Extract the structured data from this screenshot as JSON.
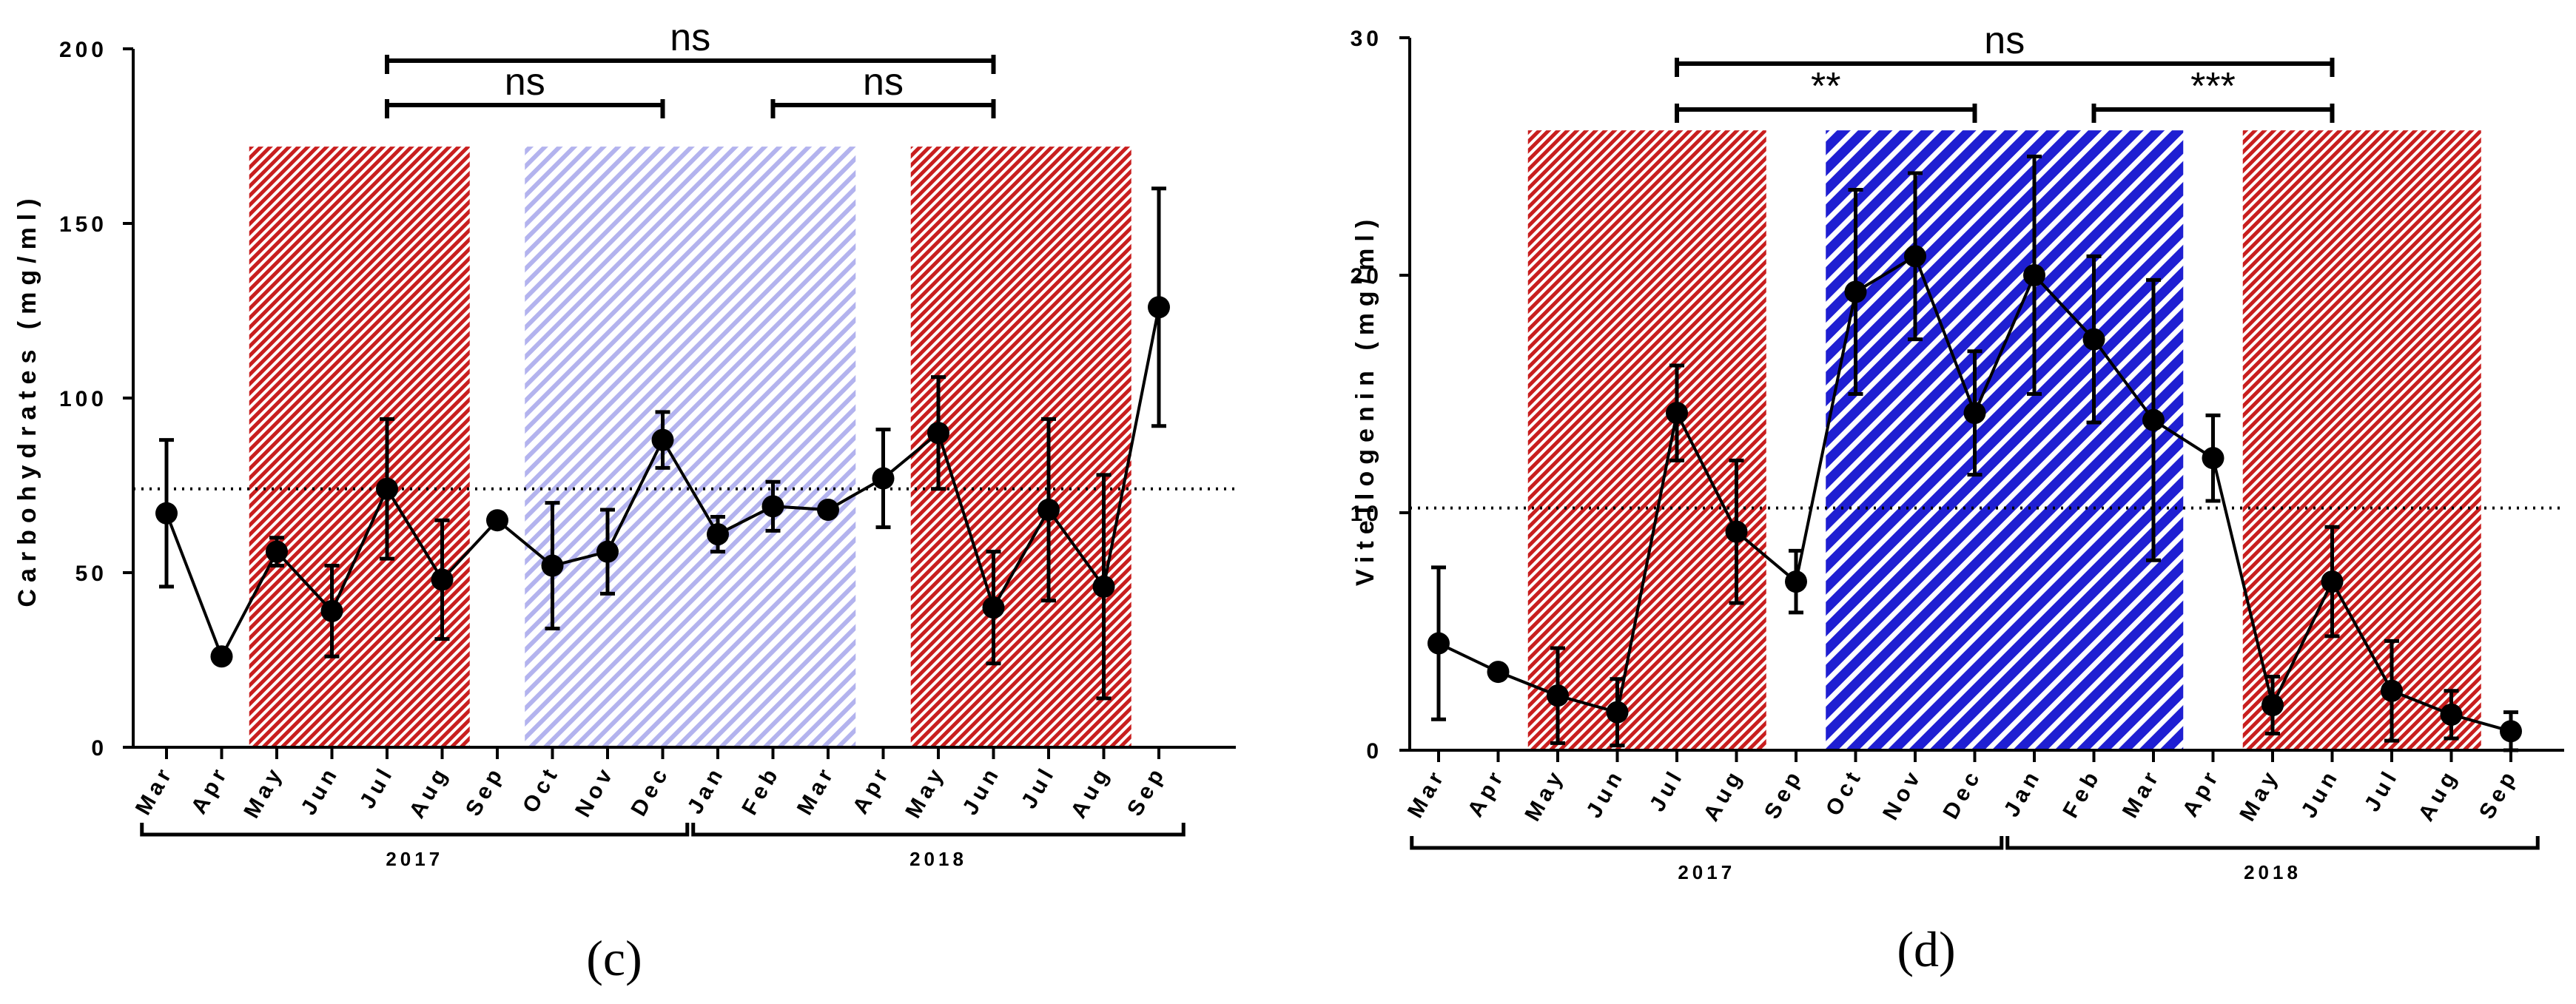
{
  "chart_data": [
    {
      "type": "line",
      "panel_label": "(c)",
      "ylabel": "Carbohydrates  (mg/ml)",
      "xlabel": "",
      "ylim": [
        0,
        200
      ],
      "yticks": [
        0,
        50,
        100,
        150,
        200
      ],
      "ytick_labels": [
        "0",
        "50",
        "100",
        "150",
        "200"
      ],
      "categories": [
        "Mar",
        "Apr",
        "May",
        "Jun",
        "Jul",
        "Aug",
        "Sep",
        "Oct",
        "Nov",
        "Dec",
        "Jan",
        "Feb",
        "Mar",
        "Apr",
        "May",
        "Jun",
        "Jul",
        "Aug",
        "Sep"
      ],
      "values": [
        67,
        26,
        56,
        39,
        74,
        48,
        65,
        52,
        56,
        88,
        61,
        69,
        68,
        77,
        90,
        40,
        68,
        46,
        126
      ],
      "error": [
        21,
        0,
        4,
        13,
        20,
        17,
        0,
        18,
        12,
        8,
        5,
        7,
        0,
        14,
        16,
        16,
        26,
        32,
        34
      ],
      "reference_line": 74,
      "shaded_periods": [
        {
          "from": 2,
          "to": 5,
          "color": "#c81e1e",
          "style": "dense"
        },
        {
          "from": 7,
          "to": 12,
          "color": "#a8a8f0",
          "style": "light"
        },
        {
          "from": 14,
          "to": 17,
          "color": "#c81e1e",
          "style": "dense"
        }
      ],
      "significance": [
        {
          "from": 4,
          "to": 15,
          "level": 2,
          "label": "ns"
        },
        {
          "from": 4,
          "to": 9,
          "level": 1,
          "label": "ns"
        },
        {
          "from": 11,
          "to": 15,
          "level": 1,
          "label": "ns"
        }
      ],
      "years": [
        {
          "label": "2017",
          "from": 0,
          "to": 9
        },
        {
          "label": "2018",
          "from": 10,
          "to": 18
        }
      ],
      "reference_label": "",
      "title": ""
    },
    {
      "type": "line",
      "panel_label": "(d)",
      "ylabel": "Vitellogenin  (mg/ml)",
      "xlabel": "",
      "ylim": [
        0,
        30
      ],
      "yticks": [
        0,
        10,
        20,
        30
      ],
      "ytick_labels": [
        "0",
        "10",
        "20",
        "30"
      ],
      "categories": [
        "Mar",
        "Apr",
        "May",
        "Jun",
        "Jul",
        "Aug",
        "Sep",
        "Oct",
        "Nov",
        "Dec",
        "Jan",
        "Feb",
        "Mar",
        "Apr",
        "May",
        "Jun",
        "Jul",
        "Aug",
        "Sep"
      ],
      "values": [
        4.5,
        3.3,
        2.3,
        1.6,
        14.2,
        9.2,
        7.1,
        19.3,
        20.8,
        14.2,
        20.0,
        17.3,
        13.9,
        12.3,
        1.9,
        7.1,
        2.5,
        1.5,
        0.8
      ],
      "error": [
        3.2,
        0,
        2.0,
        1.4,
        2.0,
        3.0,
        1.3,
        4.3,
        3.5,
        2.6,
        5.0,
        3.5,
        5.9,
        1.8,
        1.2,
        2.3,
        2.1,
        1.0,
        0.8
      ],
      "reference_line": 10.2,
      "shaded_periods": [
        {
          "from": 2,
          "to": 5,
          "color": "#c81e1e",
          "style": "dense"
        },
        {
          "from": 7,
          "to": 12,
          "color": "#1f1fd2",
          "style": "bold"
        },
        {
          "from": 14,
          "to": 17,
          "color": "#c81e1e",
          "style": "dense"
        }
      ],
      "significance": [
        {
          "from": 4,
          "to": 15,
          "level": 2,
          "label": "ns"
        },
        {
          "from": 4,
          "to": 9,
          "level": 1,
          "label": "**"
        },
        {
          "from": 11,
          "to": 15,
          "level": 1,
          "label": "***"
        }
      ],
      "years": [
        {
          "label": "2017",
          "from": 0,
          "to": 9
        },
        {
          "label": "2018",
          "from": 10,
          "to": 18
        }
      ],
      "reference_label": "",
      "title": ""
    }
  ]
}
